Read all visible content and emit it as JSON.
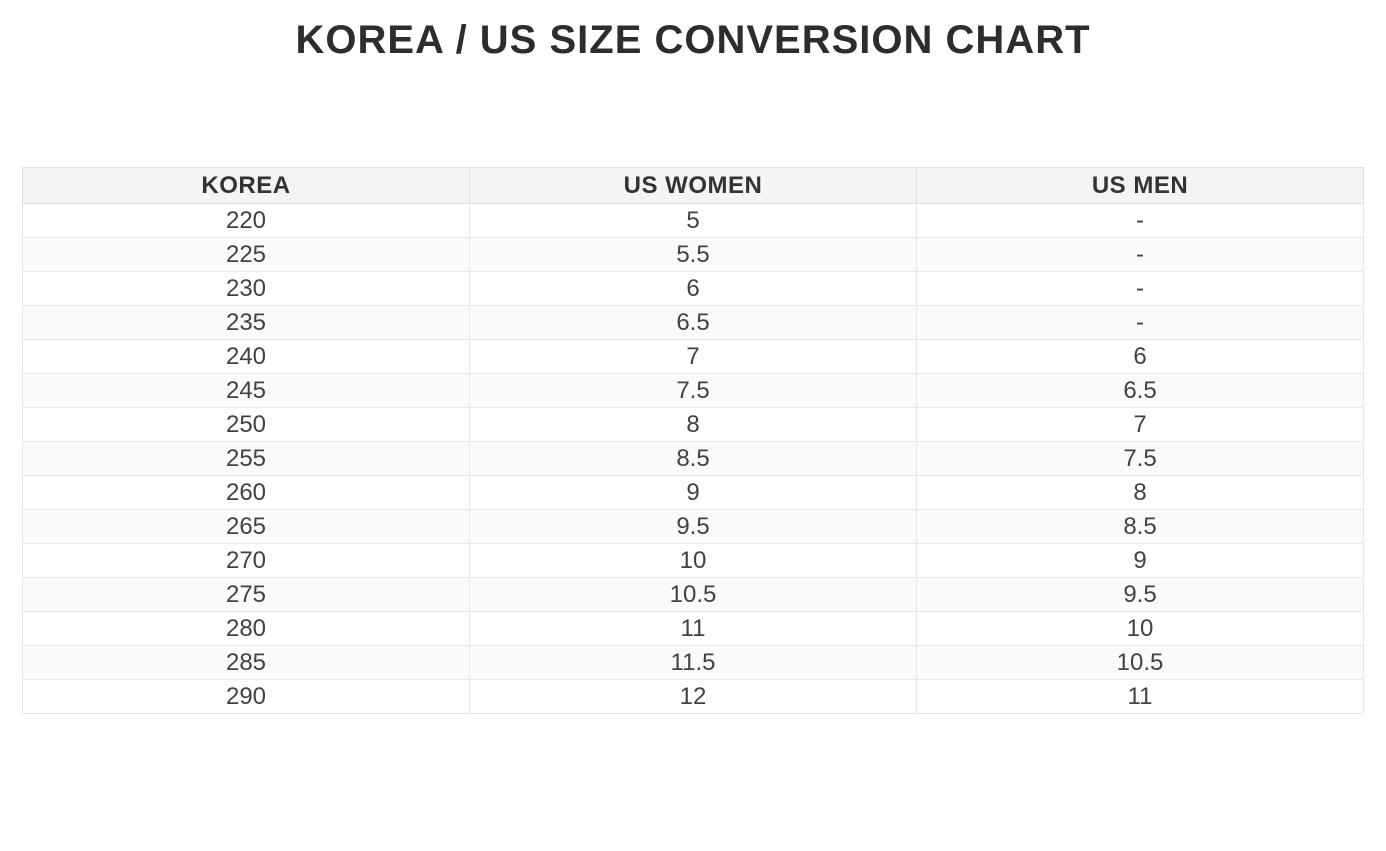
{
  "title": "KOREA / US SIZE CONVERSION CHART",
  "chart_data": {
    "type": "table",
    "title": "KOREA / US SIZE CONVERSION CHART",
    "columns": [
      "KOREA",
      "US WOMEN",
      "US MEN"
    ],
    "rows": [
      [
        "220",
        "5",
        "-"
      ],
      [
        "225",
        "5.5",
        "-"
      ],
      [
        "230",
        "6",
        "-"
      ],
      [
        "235",
        "6.5",
        "-"
      ],
      [
        "240",
        "7",
        "6"
      ],
      [
        "245",
        "7.5",
        "6.5"
      ],
      [
        "250",
        "8",
        "7"
      ],
      [
        "255",
        "8.5",
        "7.5"
      ],
      [
        "260",
        "9",
        "8"
      ],
      [
        "265",
        "9.5",
        "8.5"
      ],
      [
        "270",
        "10",
        "9"
      ],
      [
        "275",
        "10.5",
        "9.5"
      ],
      [
        "280",
        "11",
        "10"
      ],
      [
        "285",
        "11.5",
        "10.5"
      ],
      [
        "290",
        "12",
        "11"
      ]
    ],
    "layout": {
      "zebra_striping": true,
      "grid": true
    }
  },
  "colors": {
    "header_bg": "#f4f4f4",
    "row_alt_bg": "#fafafa",
    "border": "#e7e7e7",
    "header_border": "#e0e0e0",
    "title_text": "#2d2d2d",
    "header_text": "#333333",
    "body_text": "#424242"
  }
}
